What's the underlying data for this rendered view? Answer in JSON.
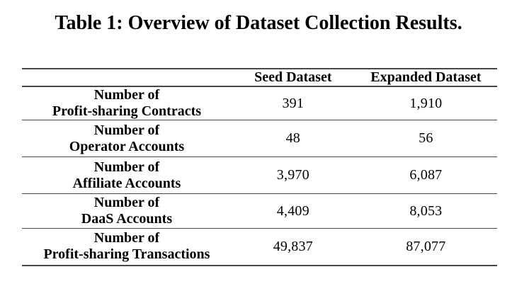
{
  "caption": "Table 1: Overview of Dataset Collection Results.",
  "table": {
    "header": {
      "label_col": "",
      "seed_col": "Seed Dataset",
      "expanded_col": "Expanded Dataset"
    },
    "rows": [
      {
        "label_line1": "Number of",
        "label_line2": "Profit-sharing Contracts",
        "seed": "391",
        "expanded": "1,910"
      },
      {
        "label_line1": "Number of",
        "label_line2": "Operator Accounts",
        "seed": "48",
        "expanded": "56"
      },
      {
        "label_line1": "Number of",
        "label_line2": "Affiliate Accounts",
        "seed": "3,970",
        "expanded": "6,087"
      },
      {
        "label_line1": "Number of",
        "label_line2": "DaaS Accounts",
        "seed": "4,409",
        "expanded": "8,053"
      },
      {
        "label_line1": "Number of",
        "label_line2": "Profit-sharing Transactions",
        "seed": "49,837",
        "expanded": "87,077"
      }
    ],
    "colors": {
      "text": "#000000",
      "rule": "#474747",
      "background": "#ffffff"
    }
  }
}
